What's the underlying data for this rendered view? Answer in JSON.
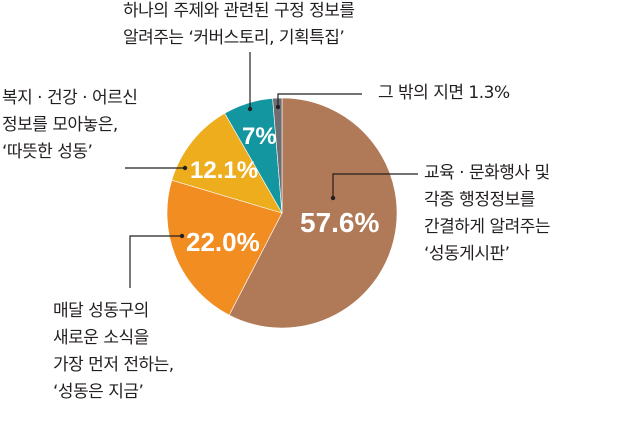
{
  "chart_data": {
    "type": "pie",
    "title": "",
    "start_angle": "12 o'clock",
    "direction": "clockwise",
    "slices": [
      {
        "label": "교육 · 문화행사 및 각종 행정정보를 간결하게 알려주는 '성동게시판'",
        "value": 57.6,
        "display": "57.6%",
        "color": "#B07A58"
      },
      {
        "label": "매달 성동구의 새로운 소식을 가장 먼저 전하는, '성동은 지금'",
        "value": 22.0,
        "display": "22.0%",
        "color": "#F28D22"
      },
      {
        "label": "복지 · 건강 · 어르신 정보를 모아놓은, '따뜻한 성동'",
        "value": 12.1,
        "display": "12.1%",
        "color": "#EDAD1C"
      },
      {
        "label": "하나의 주제와 관련된 구정 정보를 알려주는 '커버스토리, 기획특집'",
        "value": 7.0,
        "display": "7%",
        "color": "#13969F"
      },
      {
        "label": "그 밖의 지면",
        "value": 1.3,
        "display": "1.3%",
        "color": "#6E6E72"
      }
    ]
  },
  "labels": {
    "top": [
      "하나의 주제와 관련된 구정 정보를",
      "알려주는 ‘커버스토리, 기획특집’"
    ],
    "other": "그 밖의 지면 1.3%",
    "left_upper": [
      "복지 · 건강 · 어르신",
      "정보를 모아놓은,",
      "‘따뜻한 성동’"
    ],
    "left_lower": [
      "매달 성동구의",
      "새로운 소식을",
      "가장 먼저 전하는,",
      "‘성동은 지금’"
    ],
    "right": [
      "교육 · 문화행사 및",
      "각종 행정정보를",
      "간결하게 알려주는",
      "‘성동게시판’"
    ]
  },
  "values": {
    "brown": "57.6%",
    "orange": "22.0%",
    "yellow": "12.1%",
    "teal": "7%"
  }
}
